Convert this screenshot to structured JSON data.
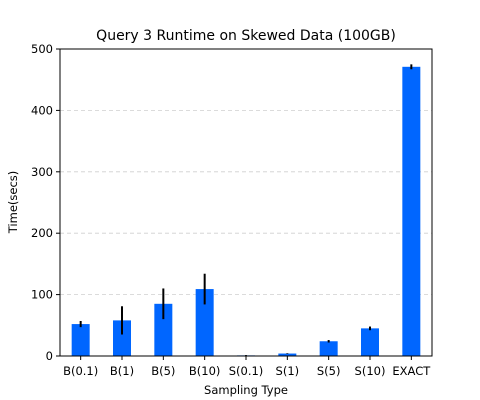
{
  "chart_data": {
    "type": "bar",
    "title": "Query 3 Runtime on Skewed Data (100GB)",
    "xlabel": "Sampling Type",
    "ylabel": "Time(secs)",
    "categories": [
      "B(0.1)",
      "B(1)",
      "B(5)",
      "B(10)",
      "S(0.1)",
      "S(1)",
      "S(5)",
      "S(10)",
      "EXACT"
    ],
    "values": [
      52,
      58,
      85,
      109,
      1,
      4,
      24,
      45,
      471
    ],
    "errors": [
      5,
      23,
      25,
      25,
      0.5,
      0.5,
      2,
      3,
      4
    ],
    "yticks": [
      0,
      100,
      200,
      300,
      400,
      500
    ],
    "ylim": [
      0,
      500
    ],
    "grid": "y-dashed",
    "bar_color": "#0066ff"
  }
}
